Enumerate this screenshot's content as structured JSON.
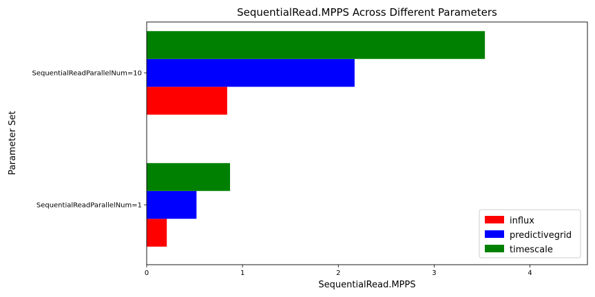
{
  "chart_data": {
    "type": "bar",
    "orientation": "horizontal",
    "title": "SequentialRead.MPPS Across Different Parameters",
    "xlabel": "SequentialRead.MPPS",
    "ylabel": "Parameter Set",
    "categories": [
      "SequentialReadParallelNum=1",
      "SequentialReadParallelNum=10"
    ],
    "series": [
      {
        "name": "influx",
        "color": "#ff0000",
        "values": [
          0.21,
          0.84
        ]
      },
      {
        "name": "predictivegrid",
        "color": "#0000ff",
        "values": [
          0.52,
          2.17
        ]
      },
      {
        "name": "timescale",
        "color": "#008000",
        "values": [
          0.87,
          3.53
        ]
      }
    ],
    "xlim": [
      0,
      4.6
    ],
    "xticks": [
      0,
      1,
      2,
      3,
      4
    ],
    "grid": false,
    "legend_position": "lower-right"
  }
}
